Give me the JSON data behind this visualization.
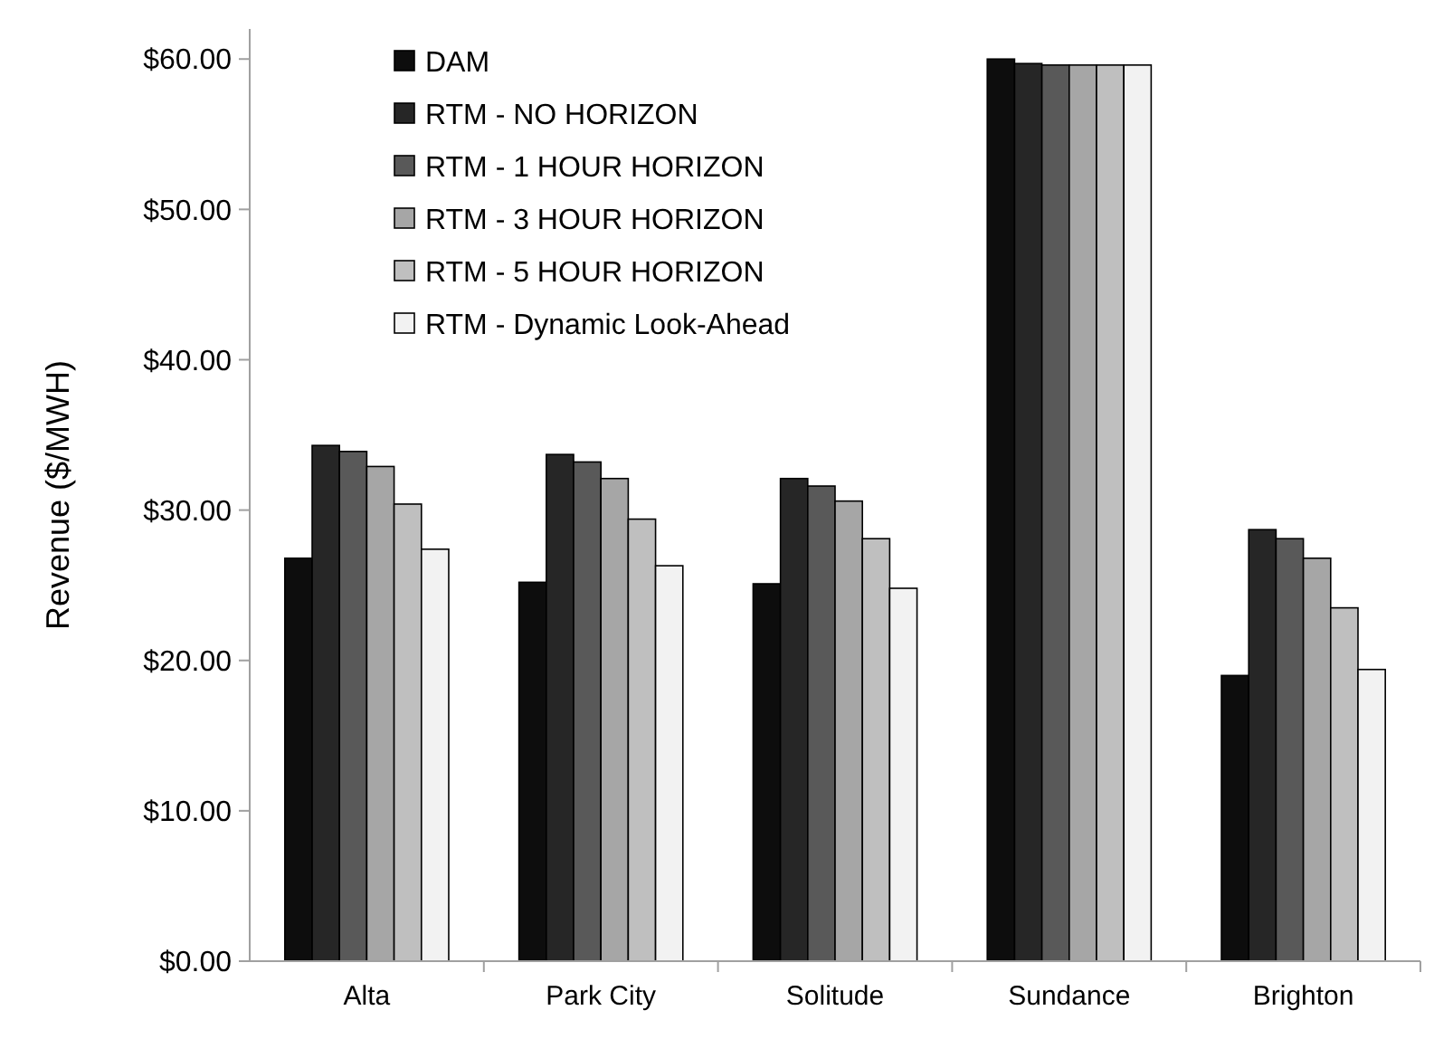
{
  "chart_data": {
    "type": "bar",
    "ylabel": "Revenue ($/MWH)",
    "categories": [
      "Alta",
      "Park City",
      "Solitude",
      "Sundance",
      "Brighton"
    ],
    "series": [
      {
        "name": "DAM",
        "color": "#0d0d0d",
        "values": [
          26.8,
          25.2,
          25.1,
          60.0,
          19.0
        ]
      },
      {
        "name": "RTM - NO HORIZON",
        "color": "#262626",
        "values": [
          34.3,
          33.7,
          32.1,
          59.7,
          28.7
        ]
      },
      {
        "name": "RTM - 1 HOUR HORIZON",
        "color": "#595959",
        "values": [
          33.9,
          33.2,
          31.6,
          59.6,
          28.1
        ]
      },
      {
        "name": "RTM - 3 HOUR HORIZON",
        "color": "#a6a6a6",
        "values": [
          32.9,
          32.1,
          30.6,
          59.6,
          26.8
        ]
      },
      {
        "name": "RTM - 5 HOUR HORIZON",
        "color": "#bfbfbf",
        "values": [
          30.4,
          29.4,
          28.1,
          59.6,
          23.5
        ]
      },
      {
        "name": "RTM - Dynamic Look-Ahead",
        "color": "#f2f2f2",
        "values": [
          27.4,
          26.3,
          24.8,
          59.6,
          19.4
        ]
      }
    ],
    "ylim": [
      0,
      62
    ],
    "yticks": [
      {
        "value": 0,
        "label": "$0.00"
      },
      {
        "value": 10,
        "label": "$10.00"
      },
      {
        "value": 20,
        "label": "$20.00"
      },
      {
        "value": 30,
        "label": "$30.00"
      },
      {
        "value": 40,
        "label": "$40.00"
      },
      {
        "value": 50,
        "label": "$50.00"
      },
      {
        "value": 60,
        "label": "$60.00"
      }
    ],
    "grid": false,
    "legend": "top left"
  }
}
